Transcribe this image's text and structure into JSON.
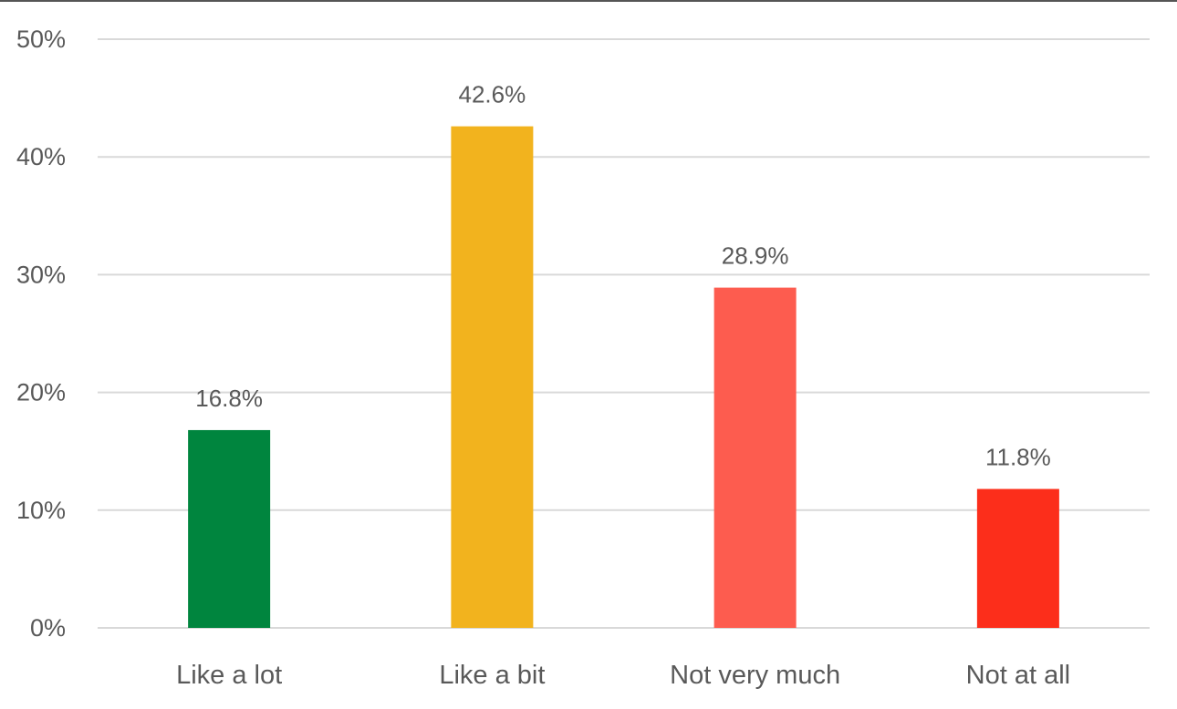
{
  "chart_data": {
    "type": "bar",
    "title": "",
    "xlabel": "",
    "ylabel": "",
    "categories": [
      "Like a lot",
      "Like a bit",
      "Not very much",
      "Not at all"
    ],
    "values": [
      16.8,
      42.6,
      28.9,
      11.8
    ],
    "data_labels": [
      "16.8%",
      "42.6%",
      "28.9%",
      "11.8%"
    ],
    "bar_colors": [
      "#00853e",
      "#f2b31e",
      "#fd5c4f",
      "#fc2e1b"
    ],
    "ylim": [
      0,
      50
    ],
    "yticks": [
      0,
      10,
      20,
      30,
      40,
      50
    ],
    "ytick_labels": [
      "0%",
      "10%",
      "20%",
      "30%",
      "40%",
      "50%"
    ],
    "grid": true,
    "legend": "none"
  }
}
